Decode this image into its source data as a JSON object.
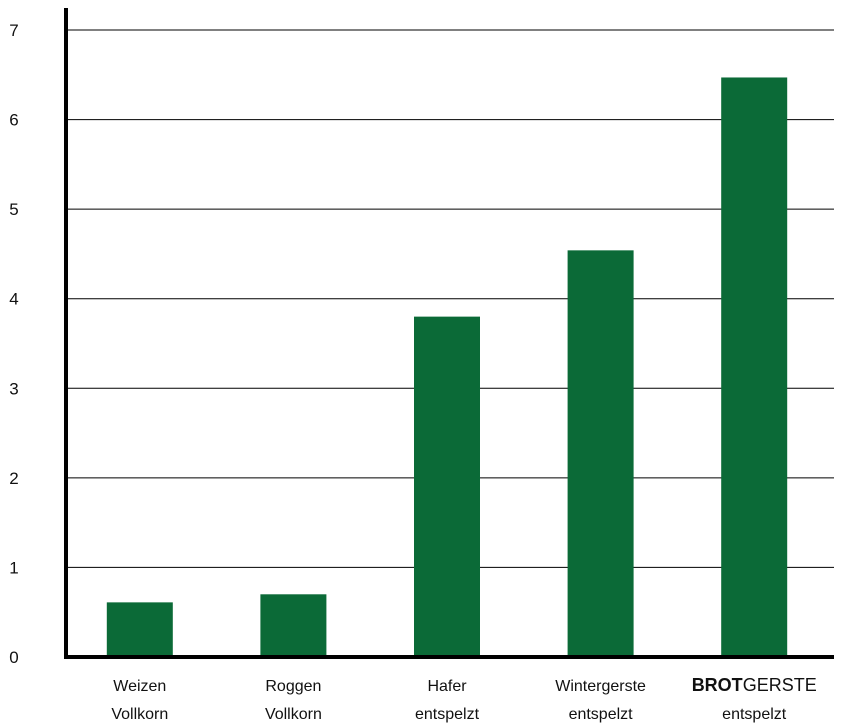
{
  "chart_data": {
    "type": "bar",
    "title": "",
    "xlabel": "",
    "ylabel": "",
    "ylim": [
      0,
      7
    ],
    "yticks": [
      0,
      1,
      2,
      3,
      4,
      5,
      6,
      7
    ],
    "grid": true,
    "categories": [
      {
        "line1": "Weizen",
        "line2": "Vollkorn"
      },
      {
        "line1": "Roggen",
        "line2": "Vollkorn"
      },
      {
        "line1": "Hafer",
        "line2": "entspelzt"
      },
      {
        "line1": "Wintergerste",
        "line2": "entspelzt"
      },
      {
        "line1_bold": "BROT",
        "line1": "GERSTE",
        "line2": "entspelzt"
      }
    ],
    "values": [
      0.61,
      0.7,
      3.8,
      4.54,
      6.47
    ],
    "bar_color": "#0b6a37"
  }
}
